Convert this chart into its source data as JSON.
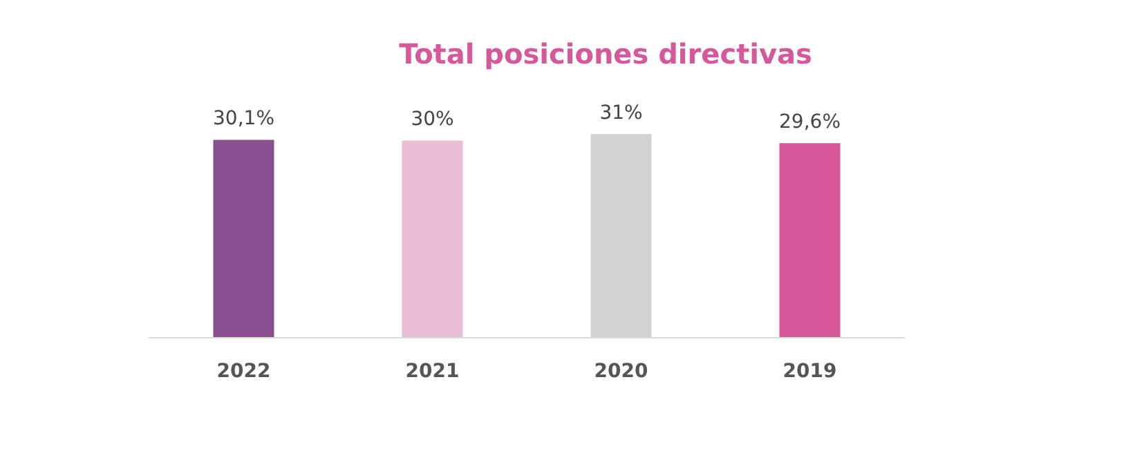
{
  "chart_data": {
    "type": "bar",
    "title": "Total posiciones directivas",
    "categories": [
      "2022",
      "2021",
      "2020",
      "2019"
    ],
    "values": [
      30.1,
      30,
      31,
      29.6
    ],
    "colors": [
      "#8a4f8f",
      "#e9bdd6",
      "#d3d3d3",
      "#d6579a"
    ],
    "value_labels": [
      "30,1%",
      "30%",
      "31%",
      "29,6%"
    ]
  }
}
